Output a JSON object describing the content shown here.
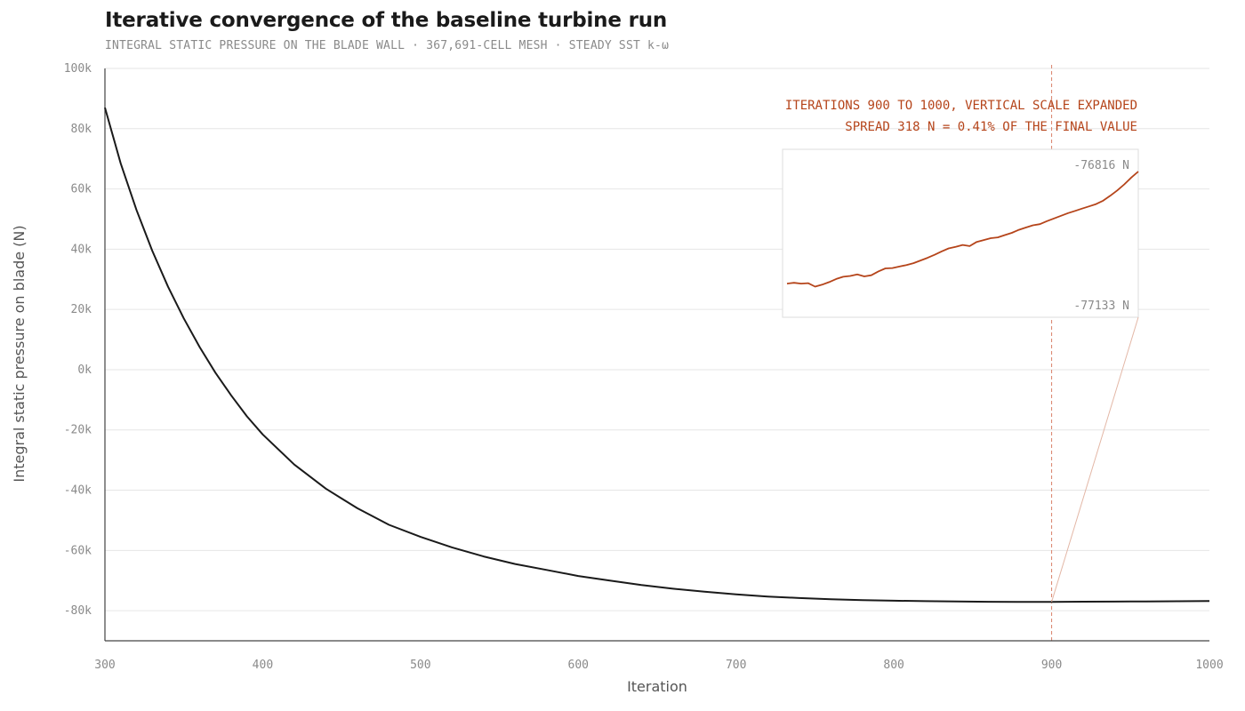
{
  "chart_data": {
    "type": "line",
    "title": "Iterative convergence of the baseline turbine run",
    "subtitle": "INTEGRAL STATIC PRESSURE ON THE BLADE WALL · 367,691-CELL MESH · STEADY SST k-ω",
    "xlabel": "Iteration",
    "ylabel": "Integral static pressure on blade (N)",
    "xlim": [
      300,
      1000
    ],
    "ylim": [
      -90000,
      100000
    ],
    "x_ticks": [
      300,
      400,
      500,
      600,
      700,
      800,
      900,
      1000
    ],
    "y_ticks": [
      {
        "value": 100000,
        "label": "100k"
      },
      {
        "value": 80000,
        "label": "80k"
      },
      {
        "value": 60000,
        "label": "60k"
      },
      {
        "value": 40000,
        "label": "40k"
      },
      {
        "value": 20000,
        "label": "20k"
      },
      {
        "value": 0,
        "label": "0k"
      },
      {
        "value": -20000,
        "label": "-20k"
      },
      {
        "value": -40000,
        "label": "-40k"
      },
      {
        "value": -60000,
        "label": "-60k"
      },
      {
        "value": -80000,
        "label": "-80k"
      }
    ],
    "grid": "horizontal",
    "series": [
      {
        "color": "#1a1a1a",
        "x": [
          300,
          310,
          320,
          330,
          340,
          350,
          360,
          370,
          380,
          390,
          400,
          420,
          440,
          460,
          480,
          500,
          520,
          540,
          560,
          580,
          600,
          620,
          640,
          660,
          680,
          700,
          720,
          740,
          760,
          780,
          800,
          820,
          840,
          860,
          880,
          900,
          920,
          940,
          960,
          980,
          1000
        ],
        "y": [
          87000,
          68500,
          53000,
          39500,
          27500,
          17000,
          7500,
          -1000,
          -8500,
          -15500,
          -21500,
          -31500,
          -39500,
          -46000,
          -51500,
          -55500,
          -59000,
          -62000,
          -64500,
          -66500,
          -68500,
          -70000,
          -71500,
          -72700,
          -73700,
          -74600,
          -75300,
          -75800,
          -76200,
          -76500,
          -76700,
          -76850,
          -76950,
          -77050,
          -77100,
          -77080,
          -77030,
          -76980,
          -76930,
          -76880,
          -76816
        ]
      }
    ],
    "reference_line": {
      "x": 900,
      "color": "#d9826a"
    },
    "annotation": {
      "line1": "ITERATIONS 900 TO 1000, VERTICAL SCALE EXPANDED",
      "line2": "SPREAD 318 N = 0.41% OF THE FINAL VALUE",
      "color": "#b5441a"
    },
    "inset": {
      "xlim": [
        900,
        1000
      ],
      "ylim": [
        -77133,
        -76816
      ],
      "top_label": "-76816 N",
      "bottom_label": "-77133 N",
      "color": "#b5441a",
      "x": [
        900,
        902,
        904,
        906,
        908,
        910,
        912,
        914,
        916,
        918,
        920,
        922,
        924,
        926,
        928,
        930,
        932,
        934,
        936,
        938,
        940,
        942,
        944,
        946,
        948,
        950,
        952,
        954,
        956,
        958,
        960,
        962,
        964,
        966,
        968,
        970,
        972,
        974,
        976,
        978,
        980,
        982,
        984,
        986,
        988,
        990,
        992,
        994,
        996,
        998,
        1000
      ],
      "y": [
        -77112,
        -77110,
        -77112,
        -77111,
        -77120,
        -77115,
        -77108,
        -77100,
        -77094,
        -77092,
        -77088,
        -77093,
        -77090,
        -77080,
        -77072,
        -77071,
        -77067,
        -77063,
        -77058,
        -77051,
        -77044,
        -77036,
        -77027,
        -77019,
        -77015,
        -77010,
        -77013,
        -77002,
        -76997,
        -76992,
        -76990,
        -76984,
        -76978,
        -76970,
        -76964,
        -76958,
        -76955,
        -76947,
        -76940,
        -76933,
        -76926,
        -76920,
        -76914,
        -76908,
        -76902,
        -76893,
        -76880,
        -76866,
        -76850,
        -76832,
        -76816
      ]
    }
  }
}
